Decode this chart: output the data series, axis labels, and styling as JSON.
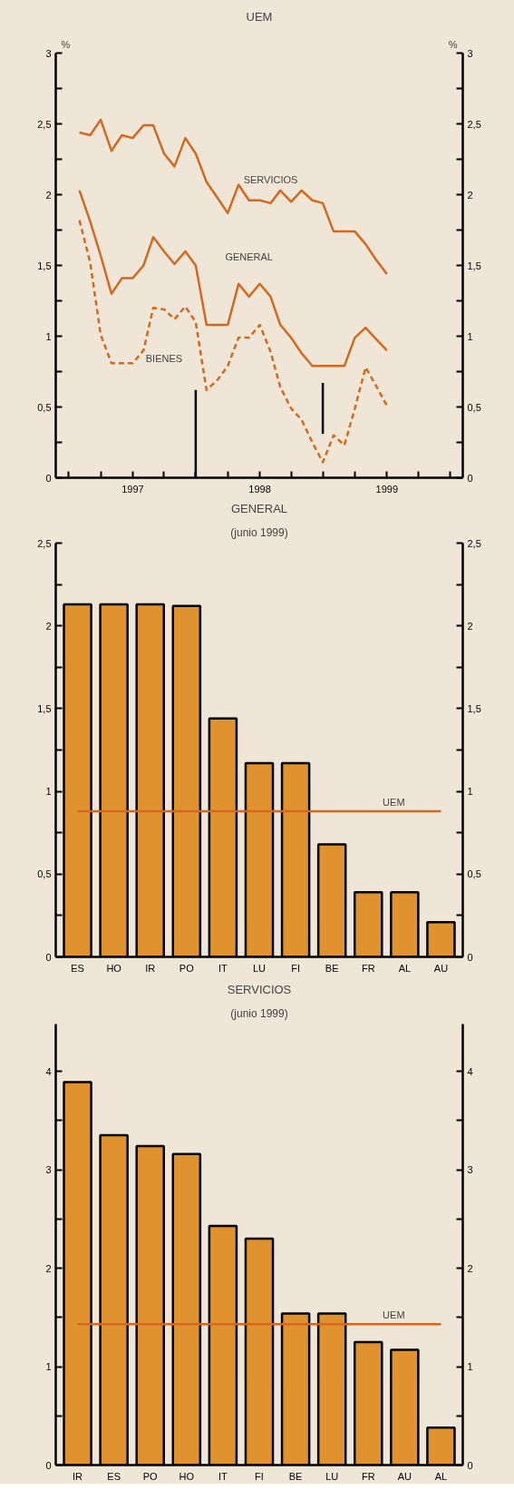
{
  "chart_data": [
    {
      "type": "line",
      "title": "UEM",
      "ylabel": "%",
      "y2label": "%",
      "x": [
        "1996-08",
        "1996-09",
        "1996-10",
        "1996-11",
        "1996-12",
        "1997-01",
        "1997-02",
        "1997-03",
        "1997-04",
        "1997-05",
        "1997-06",
        "1997-07",
        "1997-08",
        "1997-09",
        "1997-10",
        "1997-11",
        "1997-12",
        "1998-01",
        "1998-02",
        "1998-03",
        "1998-04",
        "1998-05",
        "1998-06",
        "1998-07",
        "1998-08",
        "1998-09",
        "1998-10",
        "1998-11",
        "1998-12",
        "1999-01"
      ],
      "xlim": [
        "1996-05-25",
        "1999-08-07"
      ],
      "xticks": [
        {
          "value": "1996-07",
          "label": null
        },
        {
          "value": "1996-10",
          "label": null
        },
        {
          "value": "1997-01",
          "label": "1997"
        },
        {
          "value": "1997-04",
          "label": null
        },
        {
          "value": "1997-07",
          "label": null
        },
        {
          "value": "1997-10",
          "label": null
        },
        {
          "value": "1998-01",
          "label": "1998"
        },
        {
          "value": "1998-04",
          "label": null
        },
        {
          "value": "1998-07",
          "label": null
        },
        {
          "value": "1998-10",
          "label": null
        },
        {
          "value": "1999-01",
          "label": "1999"
        },
        {
          "value": "1999-04",
          "label": null
        },
        {
          "value": "1999-07",
          "label": null
        }
      ],
      "ylim": [
        0,
        3
      ],
      "yticks": [
        0,
        {
          "value": 0.25,
          "label": null
        },
        {
          "value": 0.5,
          "label": "0,5"
        },
        {
          "value": 0.75,
          "label": null
        },
        1,
        {
          "value": 1.25,
          "label": null
        },
        {
          "value": 1.5,
          "label": "1,5"
        },
        {
          "value": 1.75,
          "label": null
        },
        2,
        {
          "value": 2.25,
          "label": null
        },
        {
          "value": 2.5,
          "label": "2,5"
        },
        {
          "value": 2.75,
          "label": null
        },
        3
      ],
      "y2lim": [
        0,
        3
      ],
      "y2ticks": [
        0,
        {
          "value": 0.25,
          "label": null
        },
        {
          "value": 0.5,
          "label": "0,5"
        },
        {
          "value": 0.75,
          "label": null
        },
        1,
        {
          "value": 1.25,
          "label": null
        },
        {
          "value": 1.5,
          "label": "1,5"
        },
        {
          "value": 1.75,
          "label": null
        },
        2,
        {
          "value": 2.25,
          "label": null
        },
        {
          "value": 2.5,
          "label": "2,5"
        },
        {
          "value": 2.75,
          "label": null
        },
        3
      ],
      "series": [
        {
          "name": "SERVICIOS",
          "color": "#d2691e",
          "line_style": "solid",
          "values": [
            2.44,
            2.42,
            2.53,
            2.31,
            2.42,
            2.4,
            2.49,
            2.49,
            2.29,
            2.2,
            2.4,
            2.29,
            2.09,
            1.98,
            1.87,
            2.07,
            1.96,
            1.96,
            1.94,
            2.03,
            1.95,
            2.03,
            1.96,
            1.94,
            1.74,
            1.74,
            1.74,
            1.65,
            1.54,
            1.44
          ]
        },
        {
          "name": "GENERAL",
          "color": "#d2691e",
          "line_style": "solid",
          "values": [
            2.03,
            1.81,
            1.57,
            1.3,
            1.41,
            1.41,
            1.5,
            1.7,
            1.6,
            1.51,
            1.6,
            1.5,
            1.08,
            1.08,
            1.08,
            1.37,
            1.28,
            1.37,
            1.28,
            1.08,
            0.99,
            0.88,
            0.79,
            0.79,
            0.79,
            0.79,
            0.99,
            1.06,
            0.98,
            0.9
          ]
        },
        {
          "name": "BIENES",
          "color": "#d2691e",
          "line_style": "dashed",
          "values": [
            1.82,
            1.52,
            1.01,
            0.81,
            0.81,
            0.81,
            0.9,
            1.2,
            1.19,
            1.12,
            1.21,
            1.1,
            0.62,
            0.69,
            0.79,
            0.99,
            0.99,
            1.08,
            0.89,
            0.64,
            0.49,
            0.41,
            0.25,
            0.11,
            0.3,
            0.23,
            0.49,
            0.78,
            0.65,
            0.51
          ]
        },
        {
          "color": "#000000",
          "line_style": "solid",
          "x": [
            "1997-07",
            "1997-07"
          ],
          "values": [
            0,
            0.62
          ]
        },
        {
          "color": "#000000",
          "line_style": "solid",
          "x": [
            "1998-07",
            "1998-07"
          ],
          "values": [
            0.31,
            0.67
          ]
        }
      ]
    },
    {
      "type": "bar",
      "title": "GENERAL",
      "subtitle": "(junio 1999)",
      "categories": [
        "ES",
        "HO",
        "IR",
        "PO",
        "IT",
        "LU",
        "FI",
        "BE",
        "FR",
        "AL",
        "AU"
      ],
      "values": [
        2.13,
        2.13,
        2.13,
        2.12,
        1.44,
        1.17,
        1.17,
        0.68,
        0.39,
        0.39,
        0.21
      ],
      "color": "#e0922e",
      "ylim": [
        0,
        2.5
      ],
      "yticks": [
        0,
        {
          "value": 0.25,
          "label": null
        },
        {
          "value": 0.5,
          "label": "0,5"
        },
        {
          "value": 0.75,
          "label": null
        },
        1,
        {
          "value": 1.25,
          "label": null
        },
        {
          "value": 1.5,
          "label": "1,5"
        },
        {
          "value": 1.75,
          "label": null
        },
        2,
        {
          "value": 2.25,
          "label": null
        },
        {
          "value": 2.5,
          "label": "2,5"
        }
      ],
      "y2lim": [
        0,
        2.5
      ],
      "y2ticks": [
        0,
        {
          "value": 0.25,
          "label": null
        },
        {
          "value": 0.5,
          "label": "0,5"
        },
        {
          "value": 0.75,
          "label": null
        },
        1,
        {
          "value": 1.25,
          "label": null
        },
        {
          "value": 1.5,
          "label": "1,5"
        },
        {
          "value": 1.75,
          "label": null
        },
        2,
        {
          "value": 2.25,
          "label": null
        },
        {
          "value": 2.5,
          "label": "2,5"
        }
      ],
      "ref_lines": [
        {
          "axis": "y",
          "value": 0.88,
          "label": "UEM",
          "color": "#d2691e"
        }
      ]
    },
    {
      "type": "bar",
      "title": "SERVICIOS",
      "subtitle": "(junio 1999)",
      "categories": [
        "IR",
        "ES",
        "PO",
        "HO",
        "IT",
        "FI",
        "BE",
        "LU",
        "FR",
        "AU",
        "AL"
      ],
      "values": [
        3.89,
        3.35,
        3.24,
        3.16,
        2.43,
        2.3,
        1.54,
        1.54,
        1.25,
        1.17,
        0.38
      ],
      "color": "#e0922e",
      "ylim": [
        0,
        4.48
      ],
      "yticks": [
        0,
        {
          "value": 0.5,
          "label": null
        },
        1,
        {
          "value": 1.5,
          "label": null
        },
        2,
        {
          "value": 2.5,
          "label": null
        },
        3,
        {
          "value": 3.5,
          "label": null
        },
        4
      ],
      "y2lim": [
        0,
        4.48
      ],
      "y2ticks": [
        0,
        {
          "value": 0.5,
          "label": null
        },
        1,
        {
          "value": 1.5,
          "label": null
        },
        2,
        {
          "value": 2.5,
          "label": null
        },
        3,
        {
          "value": 3.5,
          "label": null
        },
        4
      ],
      "ref_lines": [
        {
          "axis": "y",
          "value": 1.43,
          "label": "UEM",
          "color": "#d2691e"
        }
      ]
    }
  ]
}
